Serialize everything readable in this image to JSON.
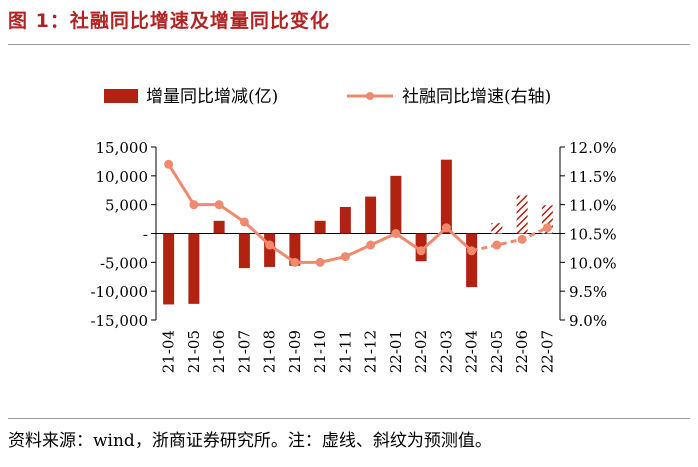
{
  "title": "图 1：社融同比增速及增量同比变化",
  "source": "资料来源：wind，浙商证券研究所。注：虚线、斜纹为预测值。",
  "colors": {
    "bar": "#b22211",
    "line": "#f08a6f",
    "title": "#b22222",
    "hatch_stroke": "#b22211"
  },
  "chart_data": {
    "type": "bar+line",
    "categories": [
      "21-04",
      "21-05",
      "21-06",
      "21-07",
      "21-08",
      "21-09",
      "21-10",
      "21-11",
      "21-12",
      "22-01",
      "22-02",
      "22-03",
      "22-04",
      "22-05",
      "22-06",
      "22-07"
    ],
    "legend_position": "top",
    "series": [
      {
        "name": "增量同比增减(亿)",
        "type": "bar",
        "axis": "left",
        "values": [
          -12300,
          -12200,
          2200,
          -6000,
          -5800,
          -5600,
          2200,
          4600,
          6400,
          10000,
          -4800,
          12800,
          -9300,
          1800,
          6600,
          4900
        ],
        "forecast_from_index": 13
      },
      {
        "name": "社融同比增速(右轴)",
        "type": "line",
        "axis": "right",
        "values": [
          11.7,
          11.0,
          11.0,
          10.7,
          10.3,
          10.0,
          10.0,
          10.1,
          10.3,
          10.5,
          10.2,
          10.6,
          10.2,
          10.3,
          10.4,
          10.6
        ],
        "forecast_from_index": 12
      }
    ],
    "left_axis": {
      "min": -15000,
      "max": 15000,
      "step": 5000,
      "tick_labels": [
        "15,000",
        "10,000",
        "5,000",
        "-",
        "-5,000",
        "-10,000",
        "-15,000"
      ]
    },
    "right_axis": {
      "min": 9.0,
      "max": 12.0,
      "step": 0.5,
      "tick_labels": [
        "12.0%",
        "11.5%",
        "11.0%",
        "10.5%",
        "10.0%",
        "9.5%",
        "9.0%"
      ]
    },
    "grid": false
  }
}
